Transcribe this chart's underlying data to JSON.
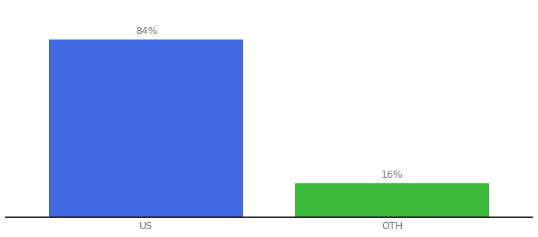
{
  "categories": [
    "US",
    "OTH"
  ],
  "values": [
    84,
    16
  ],
  "bar_colors": [
    "#4169e1",
    "#3cb83c"
  ],
  "labels": [
    "84%",
    "16%"
  ],
  "background_color": "#ffffff",
  "bar_width": 0.55,
  "x_positions": [
    0.3,
    1.0
  ],
  "xlim": [
    -0.1,
    1.4
  ],
  "ylim": [
    0,
    100
  ],
  "label_fontsize": 9,
  "tick_fontsize": 9,
  "label_color": "#777777"
}
